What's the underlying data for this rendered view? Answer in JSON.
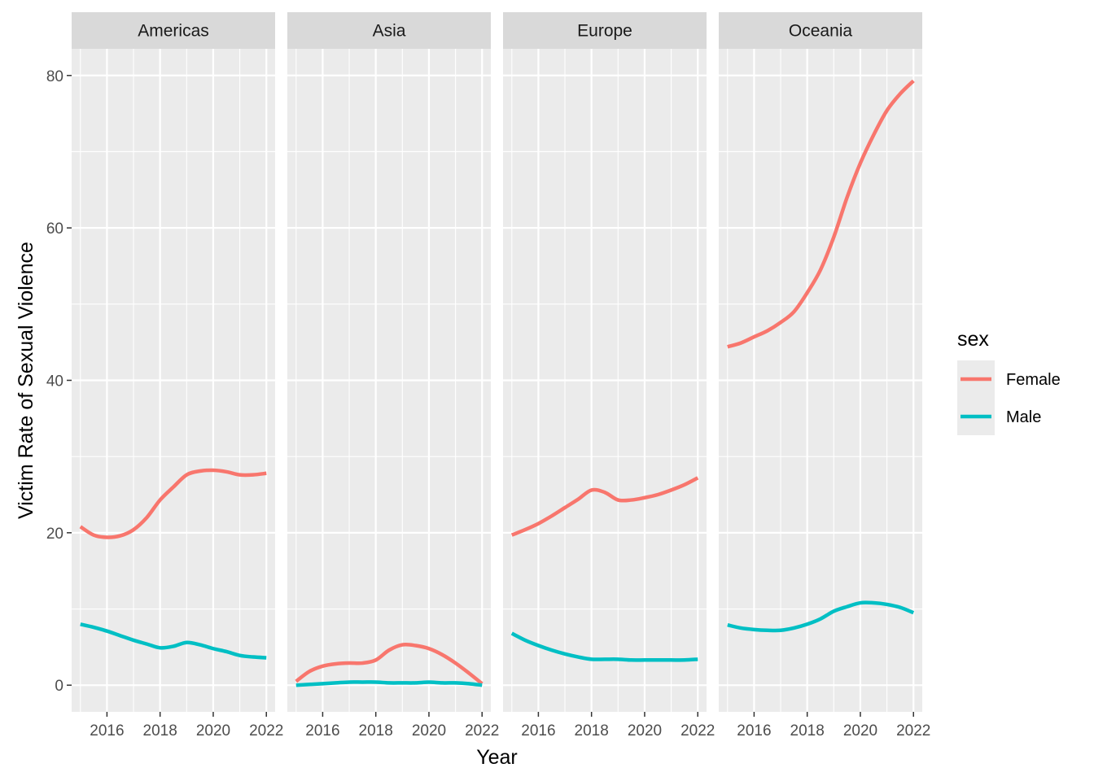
{
  "chart_data": {
    "type": "line",
    "xlabel": "Year",
    "ylabel": "Victim Rate of Sexual Violence",
    "xlim": [
      2014.67,
      2022.33
    ],
    "ylim": [
      -3.5,
      83.5
    ],
    "x_ticks": [
      2016,
      2018,
      2020,
      2022
    ],
    "x_tick_labels": [
      "2016",
      "2018",
      "2020",
      "2022"
    ],
    "y_ticks": [
      0,
      20,
      40,
      60,
      80
    ],
    "y_tick_labels": [
      "0",
      "20",
      "40",
      "60",
      "80"
    ],
    "grid": true,
    "legend": {
      "title": "sex",
      "position": "right",
      "entries": [
        {
          "label": "Female",
          "color": "#F8766D"
        },
        {
          "label": "Male",
          "color": "#00BFC4"
        }
      ]
    },
    "x": [
      2015,
      2015.5,
      2016,
      2016.5,
      2017,
      2017.5,
      2018,
      2018.5,
      2019,
      2019.5,
      2020,
      2020.5,
      2021,
      2021.5,
      2022
    ],
    "facets": [
      {
        "name": "Americas",
        "series": [
          {
            "name": "Female",
            "values": [
              20.8,
              19.7,
              19.4,
              19.6,
              20.4,
              22.0,
              24.3,
              26.0,
              27.6,
              28.1,
              28.2,
              28.0,
              27.6,
              27.6,
              27.8
            ]
          },
          {
            "name": "Male",
            "values": [
              8.0,
              7.6,
              7.1,
              6.5,
              5.9,
              5.4,
              4.9,
              5.1,
              5.6,
              5.3,
              4.8,
              4.4,
              3.9,
              3.7,
              3.6
            ]
          }
        ]
      },
      {
        "name": "Asia",
        "series": [
          {
            "name": "Female",
            "values": [
              0.5,
              1.8,
              2.5,
              2.8,
              2.9,
              2.9,
              3.3,
              4.6,
              5.3,
              5.2,
              4.8,
              4.0,
              2.9,
              1.6,
              0.2
            ]
          },
          {
            "name": "Male",
            "values": [
              0.0,
              0.1,
              0.2,
              0.3,
              0.4,
              0.4,
              0.4,
              0.3,
              0.3,
              0.3,
              0.4,
              0.3,
              0.3,
              0.2,
              0.0
            ]
          }
        ]
      },
      {
        "name": "Europe",
        "series": [
          {
            "name": "Female",
            "values": [
              19.7,
              20.4,
              21.2,
              22.2,
              23.3,
              24.4,
              25.6,
              25.3,
              24.3,
              24.3,
              24.6,
              25.0,
              25.6,
              26.3,
              27.2
            ]
          },
          {
            "name": "Male",
            "values": [
              6.8,
              5.9,
              5.2,
              4.6,
              4.1,
              3.7,
              3.4,
              3.4,
              3.4,
              3.3,
              3.3,
              3.3,
              3.3,
              3.3,
              3.4
            ]
          }
        ]
      },
      {
        "name": "Oceania",
        "series": [
          {
            "name": "Female",
            "values": [
              44.4,
              44.9,
              45.7,
              46.5,
              47.6,
              49.0,
              51.5,
              54.5,
              58.8,
              64.0,
              68.5,
              72.2,
              75.4,
              77.6,
              79.3
            ]
          },
          {
            "name": "Male",
            "values": [
              7.9,
              7.5,
              7.3,
              7.2,
              7.2,
              7.5,
              8.0,
              8.7,
              9.7,
              10.3,
              10.8,
              10.8,
              10.6,
              10.2,
              9.5
            ]
          }
        ]
      }
    ]
  }
}
